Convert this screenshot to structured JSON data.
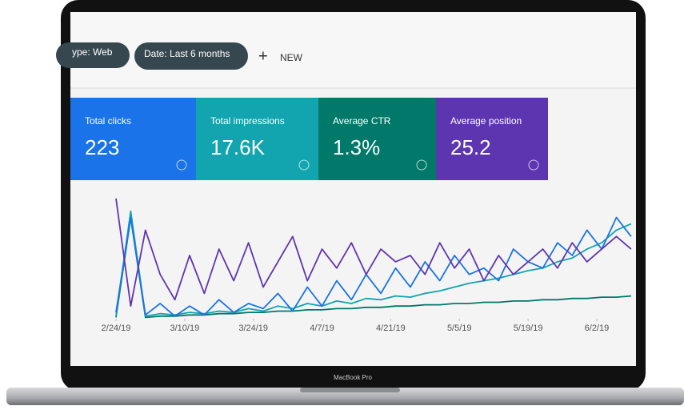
{
  "toolbar": {
    "filters": [
      "ype: Web",
      "Date: Last 6 months"
    ],
    "new_button": "NEW"
  },
  "cards": [
    {
      "label": "Total clicks",
      "value": "223"
    },
    {
      "label": "Total impressions",
      "value": "17.6K"
    },
    {
      "label": "Average CTR",
      "value": "1.3%"
    },
    {
      "label": "Average position",
      "value": "25.2"
    }
  ],
  "chart": {
    "type": "line",
    "x": [
      0,
      3,
      6,
      9,
      12,
      15,
      18,
      21,
      24,
      27,
      30,
      33,
      36,
      39,
      42,
      45,
      48,
      51,
      54,
      57,
      60,
      63,
      66,
      69,
      72,
      75,
      78,
      81,
      84,
      87,
      90,
      93,
      96,
      99,
      102,
      105
    ],
    "xlim": [
      0,
      106
    ],
    "ylim": [
      0,
      100
    ],
    "xticks": [
      {
        "value": 0,
        "label": "2/24/19"
      },
      {
        "value": 14,
        "label": "3/10/19"
      },
      {
        "value": 28,
        "label": "3/24/19"
      },
      {
        "value": 42,
        "label": "4/7/19"
      },
      {
        "value": 56,
        "label": "4/21/19"
      },
      {
        "value": 70,
        "label": "5/5/19"
      },
      {
        "value": 84,
        "label": "5/19/19"
      },
      {
        "value": 98,
        "label": "6/2/19"
      }
    ],
    "series": [
      {
        "color": "#00796b",
        "values": [
          1,
          80,
          1,
          2,
          2,
          3,
          3,
          4,
          4,
          5,
          5,
          6,
          6,
          7,
          7,
          8,
          8,
          9,
          9,
          10,
          10,
          11,
          11,
          12,
          12,
          13,
          13,
          14,
          14,
          15,
          15,
          16,
          16,
          17,
          17,
          18
        ]
      },
      {
        "color": "#12a4af",
        "values": [
          2,
          85,
          2,
          4,
          3,
          5,
          4,
          6,
          5,
          8,
          6,
          10,
          8,
          12,
          10,
          14,
          12,
          16,
          15,
          18,
          17,
          20,
          22,
          25,
          28,
          30,
          32,
          35,
          38,
          40,
          45,
          48,
          55,
          60,
          70,
          75
        ]
      },
      {
        "color": "#1a73e8",
        "values": [
          5,
          80,
          3,
          12,
          2,
          10,
          3,
          15,
          5,
          12,
          8,
          20,
          6,
          25,
          10,
          30,
          15,
          35,
          20,
          40,
          25,
          45,
          30,
          50,
          35,
          40,
          30,
          55,
          45,
          40,
          60,
          50,
          70,
          55,
          80,
          65
        ]
      },
      {
        "color": "#5e35b1",
        "values": [
          95,
          10,
          70,
          35,
          15,
          50,
          20,
          55,
          30,
          60,
          25,
          45,
          65,
          30,
          55,
          40,
          60,
          35,
          55,
          45,
          50,
          35,
          60,
          40,
          55,
          30,
          50,
          35,
          45,
          55,
          40,
          60,
          45,
          55,
          65,
          55
        ]
      }
    ]
  },
  "device": {
    "label": "MacBook Pro"
  }
}
